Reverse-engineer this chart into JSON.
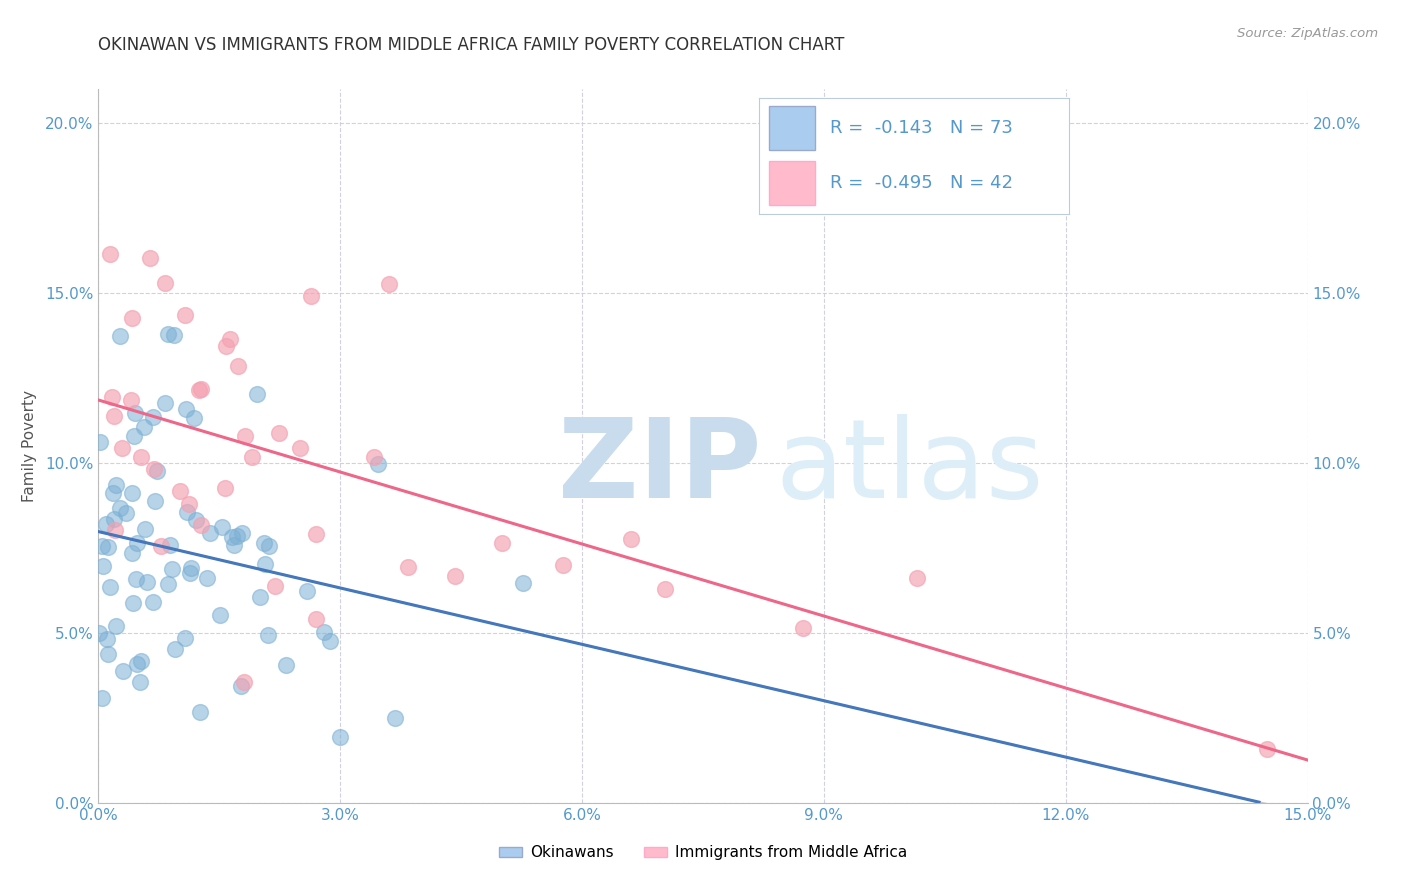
{
  "title": "OKINAWAN VS IMMIGRANTS FROM MIDDLE AFRICA FAMILY POVERTY CORRELATION CHART",
  "source": "Source: ZipAtlas.com",
  "ylabel": "Family Poverty",
  "xlim": [
    0.0,
    0.15
  ],
  "ylim": [
    0.0,
    0.21
  ],
  "x_ticks": [
    0.0,
    0.03,
    0.06,
    0.09,
    0.12,
    0.15
  ],
  "y_ticks": [
    0.0,
    0.05,
    0.1,
    0.15,
    0.2
  ],
  "okinawan_R": -0.143,
  "okinawan_N": 73,
  "immigrant_R": -0.495,
  "immigrant_N": 42,
  "okinawan_color": "#7BAFD4",
  "immigrant_color": "#F4A0B0",
  "okinawan_line_color": "#4477BB",
  "immigrant_line_color": "#EE6688",
  "background_color": "#FFFFFF",
  "grid_color": "#CCCCDD",
  "legend_box_color_okinawan": "#AACCEE",
  "legend_box_color_immigrant": "#FFBBCC",
  "title_fontsize": 12,
  "tick_label_color": "#5599CC",
  "title_color": "#333333",
  "source_color": "#999999",
  "ylabel_color": "#555555",
  "watermark_zip_color": "#C8DCEE",
  "watermark_atlas_color": "#DDEEF8"
}
